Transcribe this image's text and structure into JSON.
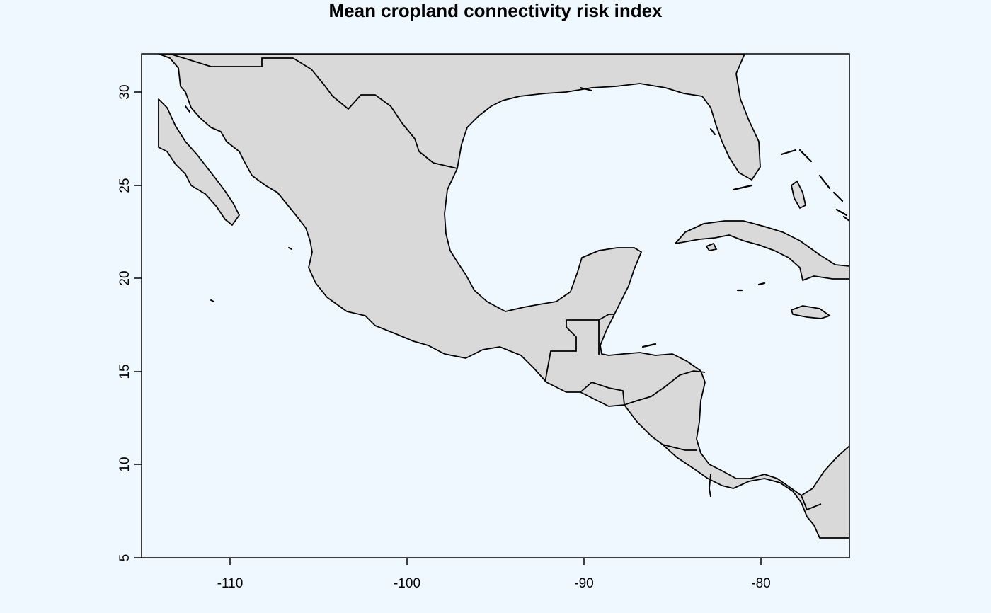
{
  "map": {
    "title": "Mean cropland connectivity risk index",
    "x_ticks": [
      "-110",
      "-100",
      "-90",
      "-80"
    ],
    "y_ticks": [
      "5",
      "10",
      "15",
      "20",
      "25",
      "30"
    ],
    "colors": {
      "background": "#f0f8ff",
      "land": "#d9d9d9",
      "border": "#000000",
      "axis": "#000000"
    }
  }
}
